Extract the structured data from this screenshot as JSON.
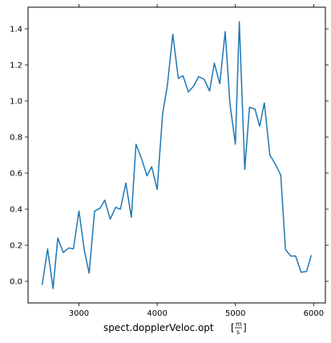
{
  "chart_data": {
    "type": "line",
    "title": "",
    "xlabel": "spect.dopplerVeloc.opt",
    "xlabel_unit_num": "m",
    "xlabel_unit_den": "s",
    "ylabel": "",
    "xlim": [
      2350,
      6150
    ],
    "ylim": [
      -0.12,
      1.52
    ],
    "xticks": [
      3000,
      4000,
      5000,
      6000
    ],
    "xtick_labels": [
      "3000",
      "4000",
      "5000",
      "6000"
    ],
    "yticks": [
      0.0,
      0.2,
      0.4,
      0.6,
      0.8,
      1.0,
      1.2,
      1.4
    ],
    "ytick_labels": [
      "0.0",
      "0.2",
      "0.4",
      "0.6",
      "0.8",
      "1.0",
      "1.2",
      "1.4"
    ],
    "grid": false,
    "series": [
      {
        "color": "#1f77b4",
        "x": [
          2530,
          2600,
          2670,
          2730,
          2800,
          2870,
          2930,
          3000,
          3070,
          3130,
          3200,
          3270,
          3330,
          3400,
          3470,
          3530,
          3600,
          3670,
          3730,
          3800,
          3870,
          3930,
          4000,
          4070,
          4130,
          4200,
          4270,
          4330,
          4400,
          4470,
          4530,
          4600,
          4670,
          4730,
          4800,
          4870,
          4930,
          5000,
          5050,
          5120,
          5180,
          5250,
          5310,
          5370,
          5440,
          5510,
          5580,
          5640,
          5710,
          5770,
          5840,
          5910,
          5970
        ],
        "y": [
          -0.02,
          0.18,
          -0.04,
          0.24,
          0.16,
          0.185,
          0.18,
          0.39,
          0.17,
          0.045,
          0.39,
          0.405,
          0.45,
          0.345,
          0.41,
          0.4,
          0.545,
          0.355,
          0.76,
          0.68,
          0.585,
          0.635,
          0.51,
          0.93,
          1.085,
          1.37,
          1.125,
          1.14,
          1.05,
          1.085,
          1.135,
          1.12,
          1.055,
          1.21,
          1.095,
          1.385,
          0.985,
          0.76,
          1.44,
          0.62,
          0.965,
          0.955,
          0.86,
          0.99,
          0.7,
          0.65,
          0.59,
          0.175,
          0.14,
          0.14,
          0.05,
          0.055,
          0.145
        ]
      }
    ]
  }
}
